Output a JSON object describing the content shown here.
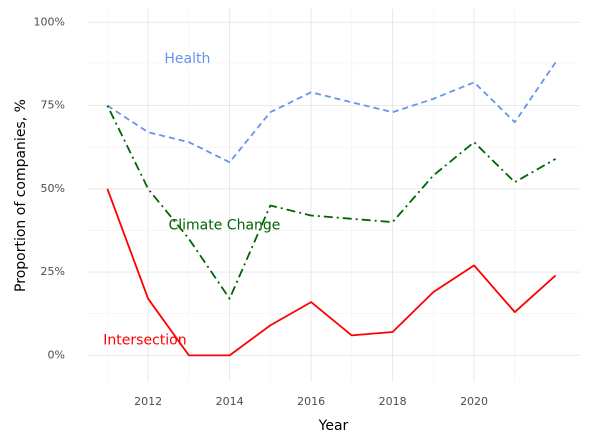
{
  "chart_data": {
    "type": "line",
    "xlabel": "Year",
    "ylabel": "Proportion of companies, %",
    "xlim": [
      2010.5,
      2022.6
    ],
    "ylim": [
      -8,
      104
    ],
    "x_ticks": [
      2012,
      2014,
      2016,
      2018,
      2020
    ],
    "y_ticks": [
      0,
      25,
      50,
      75,
      100
    ],
    "y_tick_labels": [
      "0%",
      "25%",
      "50%",
      "75%",
      "100%"
    ],
    "grid": true,
    "legend": "none",
    "x": [
      2011,
      2012,
      2013,
      2014,
      2015,
      2016,
      2017,
      2018,
      2019,
      2020,
      2021,
      2022
    ],
    "series": [
      {
        "name": "Health",
        "values": [
          75,
          67,
          64,
          58,
          73,
          79,
          76,
          73,
          77,
          82,
          70,
          88
        ],
        "color": "#6495ED",
        "dash": "dashed",
        "label_pos": {
          "x": 2012.4,
          "y": 89
        }
      },
      {
        "name": "Climate Change",
        "values": [
          75,
          50,
          35,
          17,
          45,
          42,
          41,
          40,
          54,
          64,
          52,
          59
        ],
        "color": "#006400",
        "dash": "dotdash",
        "label_pos": {
          "x": 2012.5,
          "y": 39
        }
      },
      {
        "name": "Intersection",
        "values": [
          50,
          17,
          0,
          0,
          9,
          16,
          6,
          7,
          19,
          27,
          13,
          24
        ],
        "color": "#FF0000",
        "dash": "solid",
        "label_pos": {
          "x": 2010.9,
          "y": 4.5
        }
      }
    ]
  }
}
